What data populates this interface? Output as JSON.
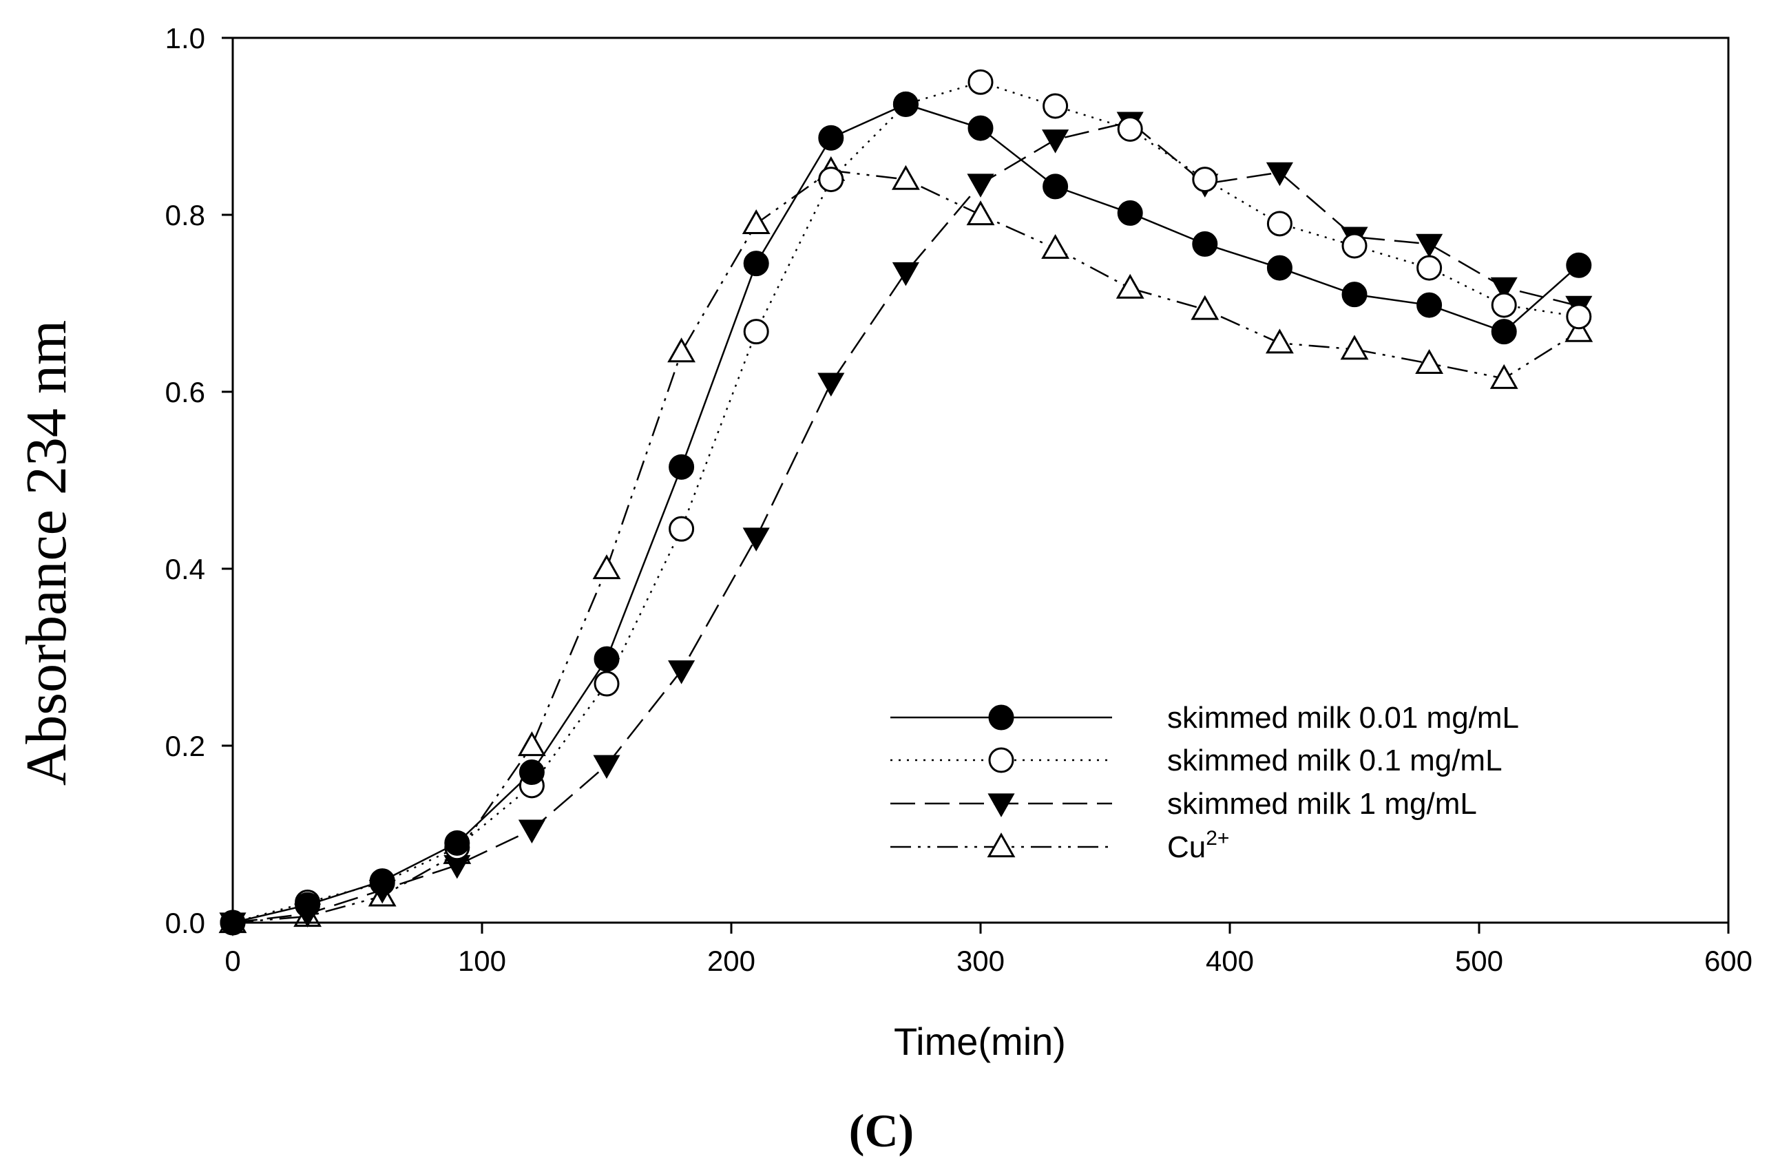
{
  "chart_data": {
    "type": "line",
    "title": "",
    "panel_label": "(C)",
    "xlabel": "Time(min)",
    "ylabel": "Absorbance 234 nm",
    "xlim": [
      0,
      600
    ],
    "ylim": [
      0,
      1.0
    ],
    "xticks": [
      0,
      100,
      200,
      300,
      400,
      500,
      600
    ],
    "yticks": [
      0.0,
      0.2,
      0.4,
      0.6,
      0.8,
      1.0
    ],
    "xtick_labels": [
      "0",
      "100",
      "200",
      "300",
      "400",
      "500",
      "600"
    ],
    "ytick_labels": [
      "0.0",
      "0.2",
      "0.4",
      "0.6",
      "0.8",
      "1.0"
    ],
    "grid": false,
    "legend_position": "bottom-right",
    "x": [
      0,
      30,
      60,
      90,
      120,
      150,
      180,
      210,
      240,
      270,
      300,
      330,
      360,
      390,
      420,
      450,
      480,
      510,
      540
    ],
    "series": [
      {
        "name": "skimmed milk 0.01 mg/mL",
        "marker": "filled-circle",
        "line": "solid",
        "values": [
          0.0,
          0.02,
          0.047,
          0.09,
          0.17,
          0.298,
          0.515,
          0.745,
          0.887,
          0.925,
          0.898,
          0.832,
          0.802,
          0.767,
          0.74,
          0.71,
          0.698,
          0.668,
          0.743
        ]
      },
      {
        "name": "skimmed milk 0.1 mg/mL",
        "marker": "open-circle",
        "line": "dotted",
        "values": [
          0.0,
          0.023,
          0.045,
          0.085,
          0.155,
          0.27,
          0.445,
          0.668,
          0.84,
          0.925,
          0.95,
          0.923,
          0.897,
          0.84,
          0.79,
          0.765,
          0.74,
          0.698,
          0.685
        ]
      },
      {
        "name": "skimmed milk 1 mg/mL",
        "marker": "filled-triangle-down",
        "line": "dashed",
        "values": [
          0.0,
          0.01,
          0.037,
          0.065,
          0.105,
          0.178,
          0.285,
          0.435,
          0.61,
          0.735,
          0.835,
          0.885,
          0.905,
          0.835,
          0.848,
          0.775,
          0.767,
          0.718,
          0.697
        ]
      },
      {
        "name": "Cu",
        "name_superscript": "2+",
        "marker": "open-triangle-up",
        "line": "dash-dot-dot",
        "values": [
          0.0,
          0.007,
          0.03,
          0.078,
          0.2,
          0.4,
          0.645,
          0.79,
          0.85,
          0.84,
          0.8,
          0.762,
          0.717,
          0.693,
          0.655,
          0.648,
          0.632,
          0.615,
          0.668
        ]
      }
    ]
  }
}
